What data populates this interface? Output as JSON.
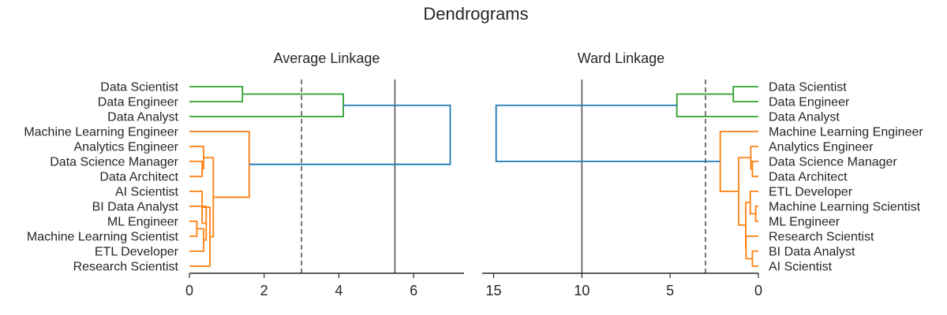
{
  "chart_data": {
    "title": "Dendrograms",
    "charts": [
      {
        "type": "dendrogram",
        "title": "Average Linkage",
        "orientation": "right",
        "xlim": [
          0,
          7.35
        ],
        "xticks": [
          0,
          2,
          4,
          6
        ],
        "thresholds": [
          {
            "value": 3.0,
            "style": "dashed",
            "color": "#555555"
          },
          {
            "value": 5.5,
            "style": "solid",
            "color": "#555555"
          }
        ],
        "leaves": [
          "Data Scientist",
          "Data Engineer",
          "Data Analyst",
          "Machine Learning Engineer",
          "Analytics Engineer",
          "Data Science Manager",
          "Data Architect",
          "AI Scientist",
          "BI Data Analyst",
          "ML Engineer",
          "Machine Learning Scientist",
          "ETL Developer",
          "Research Scientist"
        ],
        "links": [
          {
            "a": 0,
            "b": 1,
            "height": 1.42,
            "color": "#2ca02c"
          },
          {
            "a": 2,
            "b": "L0",
            "height": 4.12,
            "color": "#2ca02c"
          },
          {
            "a": 5,
            "b": 6,
            "height": 0.34,
            "color": "#ff7f0e"
          },
          {
            "a": 4,
            "b": "L2",
            "height": 0.38,
            "color": "#ff7f0e"
          },
          {
            "a": 9,
            "b": 10,
            "height": 0.2,
            "color": "#ff7f0e"
          },
          {
            "a": 11,
            "b": "L4",
            "height": 0.38,
            "color": "#ff7f0e"
          },
          {
            "a": 8,
            "b": "L5",
            "height": 0.45,
            "color": "#ff7f0e"
          },
          {
            "a": 7,
            "b": "L6",
            "height": 0.34,
            "color": "#ff7f0e"
          },
          {
            "a": 12,
            "b": "L7",
            "height": 0.55,
            "color": "#ff7f0e"
          },
          {
            "a": "L3",
            "b": "L8",
            "height": 0.64,
            "color": "#ff7f0e"
          },
          {
            "a": 3,
            "b": "L9",
            "height": 1.6,
            "color": "#ff7f0e"
          },
          {
            "a": "L1",
            "b": "L10",
            "height": 6.98,
            "color": "#1f77b4"
          }
        ]
      },
      {
        "type": "dendrogram",
        "title": "Ward Linkage",
        "orientation": "left",
        "xlim": [
          0,
          15.65
        ],
        "xticks": [
          15,
          10,
          5,
          0
        ],
        "thresholds": [
          {
            "value": 3.0,
            "style": "dashed",
            "color": "#555555"
          },
          {
            "value": 10.0,
            "style": "solid",
            "color": "#555555"
          }
        ],
        "leaves": [
          "Data Scientist",
          "Data Engineer",
          "Data Analyst",
          "Machine Learning Engineer",
          "Analytics Engineer",
          "Data Science Manager",
          "Data Architect",
          "ETL Developer",
          "Machine Learning Scientist",
          "ML Engineer",
          "Research Scientist",
          "BI Data Analyst",
          "AI Scientist"
        ],
        "links": [
          {
            "a": 0,
            "b": 1,
            "height": 1.42,
            "color": "#2ca02c"
          },
          {
            "a": 2,
            "b": "L0",
            "height": 4.62,
            "color": "#2ca02c"
          },
          {
            "a": 5,
            "b": 6,
            "height": 0.34,
            "color": "#ff7f0e"
          },
          {
            "a": 4,
            "b": "L2",
            "height": 0.43,
            "color": "#ff7f0e"
          },
          {
            "a": 8,
            "b": 9,
            "height": 0.15,
            "color": "#ff7f0e"
          },
          {
            "a": 7,
            "b": "L4",
            "height": 0.46,
            "color": "#ff7f0e"
          },
          {
            "a": 11,
            "b": 12,
            "height": 0.34,
            "color": "#ff7f0e"
          },
          {
            "a": 10,
            "b": "L6",
            "height": 0.7,
            "color": "#ff7f0e"
          },
          {
            "a": "L5",
            "b": "L7",
            "height": 0.72,
            "color": "#ff7f0e"
          },
          {
            "a": "L3",
            "b": "L8",
            "height": 1.12,
            "color": "#ff7f0e"
          },
          {
            "a": 3,
            "b": "L9",
            "height": 2.16,
            "color": "#ff7f0e"
          },
          {
            "a": "L1",
            "b": "L10",
            "height": 14.86,
            "color": "#1f77b4"
          }
        ]
      }
    ]
  }
}
